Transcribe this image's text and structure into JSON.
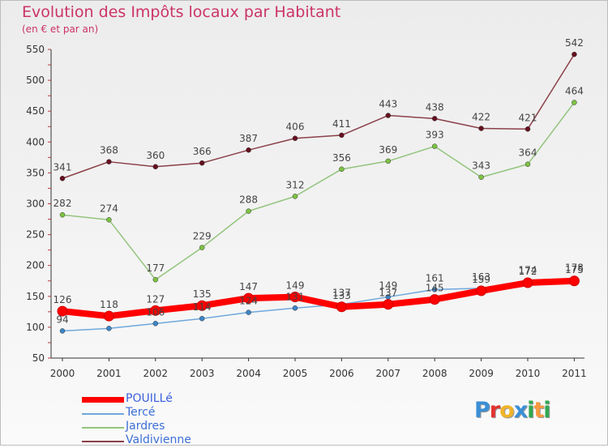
{
  "header": {
    "title": "Evolution des Impôts locaux par Habitant",
    "subtitle": "(en € et par an)"
  },
  "logo": {
    "text": "Proxiti",
    "letters": [
      {
        "ch": "P",
        "color": "#3a8fd6"
      },
      {
        "ch": "r",
        "color": "#e3342f"
      },
      {
        "ch": "o",
        "color": "#f0b429"
      },
      {
        "ch": "x",
        "color": "#3a8fd6"
      },
      {
        "ch": "i",
        "color": "#2fa84f"
      },
      {
        "ch": "t",
        "color": "#f6993f"
      },
      {
        "ch": "i",
        "color": "#2fa84f"
      }
    ]
  },
  "chart_data": {
    "type": "line",
    "title": "Evolution des Impôts locaux par Habitant",
    "subtitle": "(en € et par an)",
    "x": [
      "2000",
      "2001",
      "2002",
      "2003",
      "2004",
      "2005",
      "2006",
      "2007",
      "2008",
      "2009",
      "2010",
      "2011"
    ],
    "ylim": [
      50,
      550
    ],
    "yticks": [
      50,
      100,
      150,
      200,
      250,
      300,
      350,
      400,
      450,
      500,
      550
    ],
    "grid": false,
    "legend_position": "bottom-left",
    "series": [
      {
        "name": "POUILLé",
        "color": "#ff0000",
        "marker": "#ff0000",
        "emphasis": true,
        "values": [
          126,
          118,
          127,
          135,
          147,
          149,
          133,
          137,
          145,
          159,
          172,
          175
        ],
        "labels": [
          "126",
          "118",
          "127",
          "135",
          "147",
          "149",
          "133",
          "137",
          "145",
          "159",
          "172",
          "175"
        ]
      },
      {
        "name": "Tercé",
        "color": "#6fa8dc",
        "marker": "#3d85c6",
        "emphasis": false,
        "values": [
          94,
          98,
          106,
          114,
          124,
          131,
          137,
          149,
          161,
          163,
          174,
          178
        ],
        "labels": [
          "94",
          "",
          "106",
          "114",
          "124",
          "131",
          "137",
          "149",
          "161",
          "163",
          "174",
          "178"
        ]
      },
      {
        "name": "Jardres",
        "color": "#93c47d",
        "marker": "#7dc242",
        "emphasis": false,
        "values": [
          282,
          274,
          177,
          229,
          288,
          312,
          356,
          369,
          393,
          343,
          364,
          464
        ],
        "labels": [
          "282",
          "274",
          "177",
          "229",
          "288",
          "312",
          "356",
          "369",
          "393",
          "343",
          "364",
          "464"
        ]
      },
      {
        "name": "Valdivienne",
        "color": "#8b4049",
        "marker": "#66101f",
        "emphasis": false,
        "values": [
          341,
          368,
          360,
          366,
          387,
          406,
          411,
          443,
          438,
          422,
          421,
          542
        ],
        "labels": [
          "341",
          "368",
          "360",
          "366",
          "387",
          "406",
          "411",
          "443",
          "438",
          "422",
          "421",
          "542"
        ]
      }
    ]
  }
}
